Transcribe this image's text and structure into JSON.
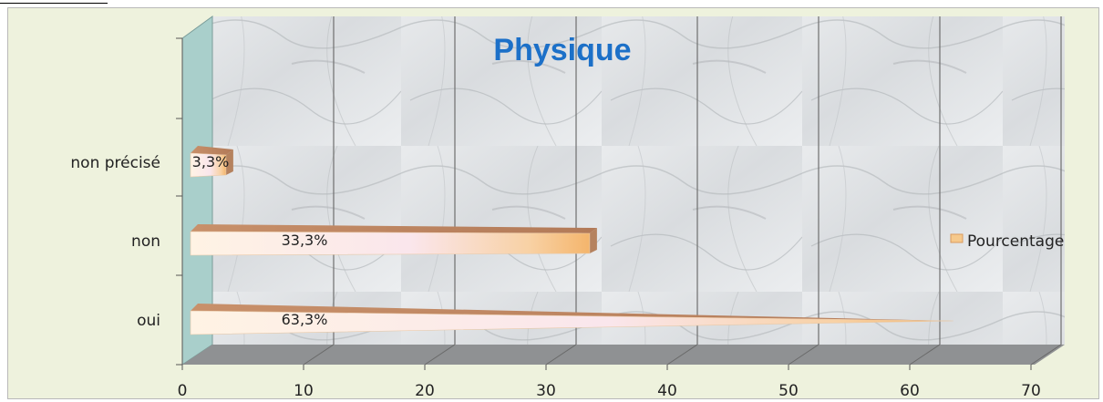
{
  "chart_data": {
    "type": "bar",
    "orientation": "horizontal",
    "title": "Physique",
    "categories": [
      "oui",
      "non",
      "non précisé"
    ],
    "series": [
      {
        "name": "Pourcentage",
        "values": [
          63.3,
          33.3,
          3.3
        ]
      }
    ],
    "data_labels": [
      "63,3%",
      "33,3%",
      "3,3%"
    ],
    "xlim": [
      0,
      70
    ],
    "x_ticks": [
      0,
      10,
      20,
      30,
      40,
      50,
      60,
      70
    ],
    "grid": true,
    "legend_position": "right",
    "colors": {
      "bar_light": "#fff1de",
      "bar_mid": "#f9e4ec",
      "bar_tip": "#f5b870",
      "bar_top": "#c8906a",
      "title": "#1c70c8",
      "left_wall": "#a9cfcb",
      "floor": "#9a9a9a"
    }
  }
}
